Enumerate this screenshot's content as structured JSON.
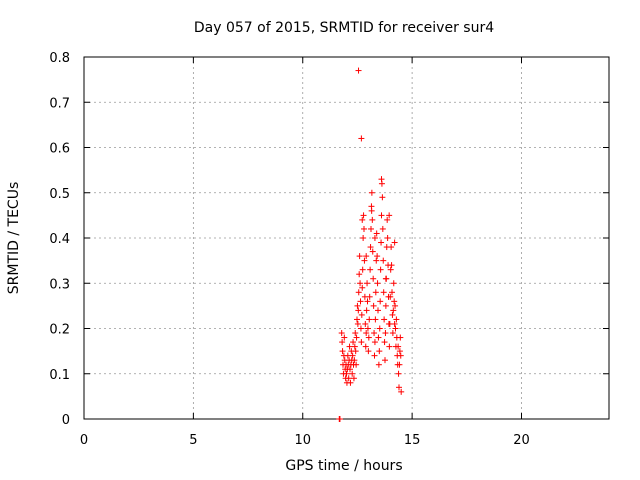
{
  "chart_data": {
    "type": "scatter",
    "title": "Day 057 of 2015, SRMTID for receiver sur4",
    "xlabel": "GPS time / hours",
    "ylabel": "SRMTID / TECUs",
    "xlim": [
      0,
      24
    ],
    "ylim": [
      0,
      0.8
    ],
    "xticks": [
      0,
      5,
      10,
      15,
      20
    ],
    "yticks": [
      0,
      0.1,
      0.2,
      0.3,
      0.4,
      0.5,
      0.6,
      0.7,
      0.8
    ],
    "grid": true,
    "marker": "+",
    "series": [
      {
        "name": "SRMTID",
        "color": "#ff0000",
        "points": [
          [
            11.67,
            0.0
          ],
          [
            11.7,
            0.0
          ],
          [
            11.78,
            0.19
          ],
          [
            11.8,
            0.17
          ],
          [
            11.82,
            0.15
          ],
          [
            11.84,
            0.12
          ],
          [
            11.86,
            0.1
          ],
          [
            11.88,
            0.14
          ],
          [
            11.9,
            0.18
          ],
          [
            11.92,
            0.13
          ],
          [
            11.94,
            0.11
          ],
          [
            11.96,
            0.09
          ],
          [
            11.98,
            0.12
          ],
          [
            12.0,
            0.1
          ],
          [
            12.02,
            0.08
          ],
          [
            12.04,
            0.11
          ],
          [
            12.06,
            0.14
          ],
          [
            12.08,
            0.12
          ],
          [
            12.1,
            0.09
          ],
          [
            12.12,
            0.13
          ],
          [
            12.14,
            0.16
          ],
          [
            12.16,
            0.11
          ],
          [
            12.18,
            0.08
          ],
          [
            12.2,
            0.12
          ],
          [
            12.22,
            0.15
          ],
          [
            12.24,
            0.13
          ],
          [
            12.26,
            0.1
          ],
          [
            12.28,
            0.14
          ],
          [
            12.3,
            0.17
          ],
          [
            12.32,
            0.12
          ],
          [
            12.34,
            0.09
          ],
          [
            12.36,
            0.13
          ],
          [
            12.38,
            0.16
          ],
          [
            12.4,
            0.19
          ],
          [
            12.42,
            0.15
          ],
          [
            12.44,
            0.12
          ],
          [
            12.46,
            0.18
          ],
          [
            12.48,
            0.22
          ],
          [
            12.5,
            0.25
          ],
          [
            12.52,
            0.21
          ],
          [
            12.54,
            0.24
          ],
          [
            12.56,
            0.28
          ],
          [
            12.58,
            0.32
          ],
          [
            12.6,
            0.36
          ],
          [
            12.62,
            0.3
          ],
          [
            12.64,
            0.26
          ],
          [
            12.66,
            0.2
          ],
          [
            12.68,
            0.17
          ],
          [
            12.7,
            0.23
          ],
          [
            12.72,
            0.29
          ],
          [
            12.74,
            0.33
          ],
          [
            12.76,
            0.4
          ],
          [
            12.78,
            0.45
          ],
          [
            12.8,
            0.42
          ],
          [
            12.82,
            0.35
          ],
          [
            12.84,
            0.27
          ],
          [
            12.86,
            0.21
          ],
          [
            12.88,
            0.16
          ],
          [
            12.9,
            0.19
          ],
          [
            12.92,
            0.24
          ],
          [
            12.94,
            0.3
          ],
          [
            12.96,
            0.26
          ],
          [
            12.98,
            0.2
          ],
          [
            13.0,
            0.15
          ],
          [
            13.02,
            0.18
          ],
          [
            13.04,
            0.22
          ],
          [
            13.06,
            0.27
          ],
          [
            13.08,
            0.33
          ],
          [
            13.1,
            0.38
          ],
          [
            13.12,
            0.42
          ],
          [
            13.14,
            0.47
          ],
          [
            13.16,
            0.5
          ],
          [
            13.18,
            0.44
          ],
          [
            13.2,
            0.37
          ],
          [
            13.22,
            0.31
          ],
          [
            13.24,
            0.25
          ],
          [
            13.26,
            0.19
          ],
          [
            13.28,
            0.14
          ],
          [
            13.3,
            0.17
          ],
          [
            13.32,
            0.22
          ],
          [
            13.34,
            0.28
          ],
          [
            13.36,
            0.35
          ],
          [
            13.38,
            0.41
          ],
          [
            13.4,
            0.36
          ],
          [
            13.42,
            0.3
          ],
          [
            13.44,
            0.24
          ],
          [
            13.46,
            0.18
          ],
          [
            13.48,
            0.12
          ],
          [
            13.5,
            0.15
          ],
          [
            13.52,
            0.2
          ],
          [
            13.54,
            0.26
          ],
          [
            13.56,
            0.33
          ],
          [
            13.58,
            0.39
          ],
          [
            13.6,
            0.45
          ],
          [
            13.62,
            0.52
          ],
          [
            13.64,
            0.49
          ],
          [
            13.66,
            0.42
          ],
          [
            13.68,
            0.35
          ],
          [
            13.7,
            0.28
          ],
          [
            13.72,
            0.22
          ],
          [
            13.74,
            0.17
          ],
          [
            13.76,
            0.13
          ],
          [
            13.78,
            0.19
          ],
          [
            13.8,
            0.25
          ],
          [
            13.82,
            0.31
          ],
          [
            13.84,
            0.38
          ],
          [
            13.86,
            0.44
          ],
          [
            13.88,
            0.4
          ],
          [
            13.9,
            0.34
          ],
          [
            13.92,
            0.27
          ],
          [
            13.94,
            0.21
          ],
          [
            13.96,
            0.16
          ],
          [
            13.98,
            0.21
          ],
          [
            14.0,
            0.27
          ],
          [
            14.02,
            0.33
          ],
          [
            14.04,
            0.38
          ],
          [
            14.06,
            0.34
          ],
          [
            14.08,
            0.28
          ],
          [
            14.1,
            0.23
          ],
          [
            14.12,
            0.19
          ],
          [
            14.14,
            0.24
          ],
          [
            14.16,
            0.3
          ],
          [
            14.18,
            0.26
          ],
          [
            14.2,
            0.21
          ],
          [
            14.22,
            0.25
          ],
          [
            14.24,
            0.2
          ],
          [
            14.26,
            0.16
          ],
          [
            14.28,
            0.22
          ],
          [
            14.3,
            0.18
          ],
          [
            14.32,
            0.14
          ],
          [
            14.34,
            0.12
          ],
          [
            14.36,
            0.16
          ],
          [
            14.38,
            0.1
          ],
          [
            14.4,
            0.07
          ],
          [
            14.42,
            0.12
          ],
          [
            14.44,
            0.15
          ],
          [
            14.46,
            0.18
          ],
          [
            14.48,
            0.14
          ],
          [
            14.5,
            0.06
          ],
          [
            12.55,
            0.77
          ],
          [
            12.68,
            0.62
          ],
          [
            13.6,
            0.53
          ],
          [
            13.15,
            0.46
          ],
          [
            12.72,
            0.44
          ],
          [
            13.95,
            0.45
          ],
          [
            14.2,
            0.39
          ],
          [
            13.3,
            0.4
          ],
          [
            12.9,
            0.36
          ],
          [
            13.8,
            0.31
          ]
        ]
      }
    ]
  }
}
